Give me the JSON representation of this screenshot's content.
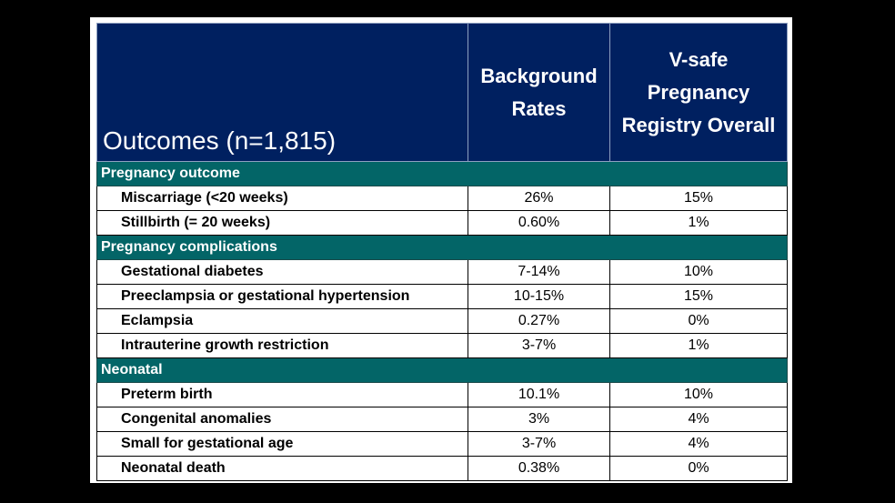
{
  "table": {
    "headers": {
      "outcomes": "Outcomes (n=1,815)",
      "background_rates": [
        "Background",
        "Rates"
      ],
      "vsafe": [
        "V-safe",
        "Pregnancy",
        "Registry Overall"
      ]
    },
    "sections": [
      {
        "title": "Pregnancy outcome",
        "rows": [
          {
            "label": "Miscarriage (<20 weeks)",
            "background": "26%",
            "vsafe": "15%"
          },
          {
            "label": "Stillbirth (= 20 weeks)",
            "background": "0.60%",
            "vsafe": "1%"
          }
        ]
      },
      {
        "title": "Pregnancy complications",
        "rows": [
          {
            "label": "Gestational diabetes",
            "background": "7-14%",
            "vsafe": "10%"
          },
          {
            "label": "Preeclampsia or gestational hypertension",
            "background": "10-15%",
            "vsafe": "15%"
          },
          {
            "label": "Eclampsia",
            "background": "0.27%",
            "vsafe": "0%"
          },
          {
            "label": "Intrauterine growth restriction",
            "background": "3-7%",
            "vsafe": "1%"
          }
        ]
      },
      {
        "title": "Neonatal",
        "rows": [
          {
            "label": "Preterm birth",
            "background": "10.1%",
            "vsafe": "10%"
          },
          {
            "label": "Congenital anomalies",
            "background": "3%",
            "vsafe": "4%"
          },
          {
            "label": "Small for gestational age",
            "background": "3-7%",
            "vsafe": "4%"
          },
          {
            "label": "Neonatal death",
            "background": "0.38%",
            "vsafe": "0%"
          }
        ]
      }
    ]
  }
}
